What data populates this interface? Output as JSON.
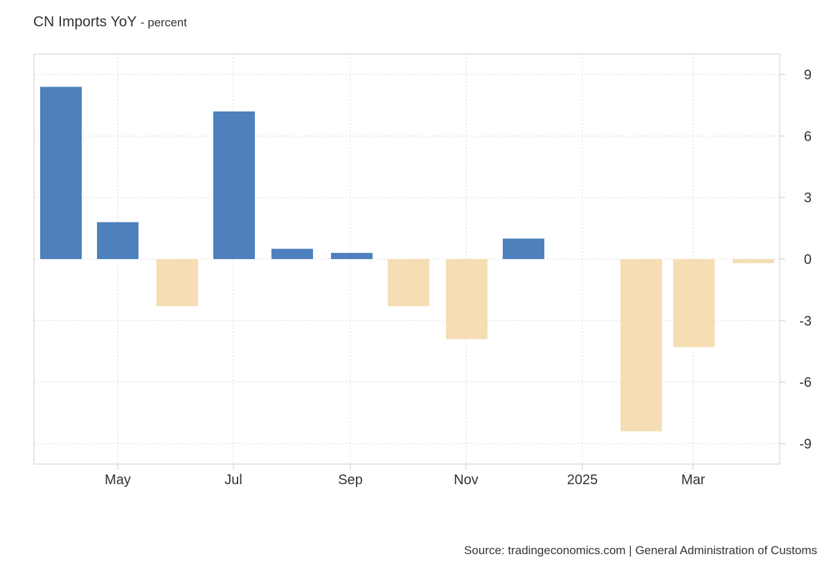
{
  "title": "CN Imports YoY",
  "subtitle": "- percent",
  "source": "Source: tradingeconomics.com | General Administration of Customs",
  "colors": {
    "positive": "#4d80bd",
    "negative": "#f5deb3",
    "grid": "#d9d9d9",
    "axis": "#cccccc"
  },
  "chart_data": {
    "type": "bar",
    "title": "CN Imports YoY",
    "subtitle": "- percent",
    "ylim": [
      -10,
      10
    ],
    "yticks": [
      9,
      6,
      3,
      0,
      -3,
      -6,
      -9
    ],
    "grid": true,
    "y_axis_position": "right",
    "x_tick_labels": [
      "May",
      "Jul",
      "Sep",
      "Nov",
      "2025",
      "Mar"
    ],
    "categories": [
      "2024-04",
      "2024-05",
      "2024-06",
      "2024-07",
      "2024-08",
      "2024-09",
      "2024-10",
      "2024-11",
      "2024-12",
      "2025-01",
      "2025-02",
      "2025-03",
      "2025-04"
    ],
    "values": [
      8.4,
      1.8,
      -2.3,
      7.2,
      0.5,
      0.3,
      -2.3,
      -3.9,
      1.0,
      null,
      -8.4,
      -4.3,
      -0.2
    ]
  }
}
